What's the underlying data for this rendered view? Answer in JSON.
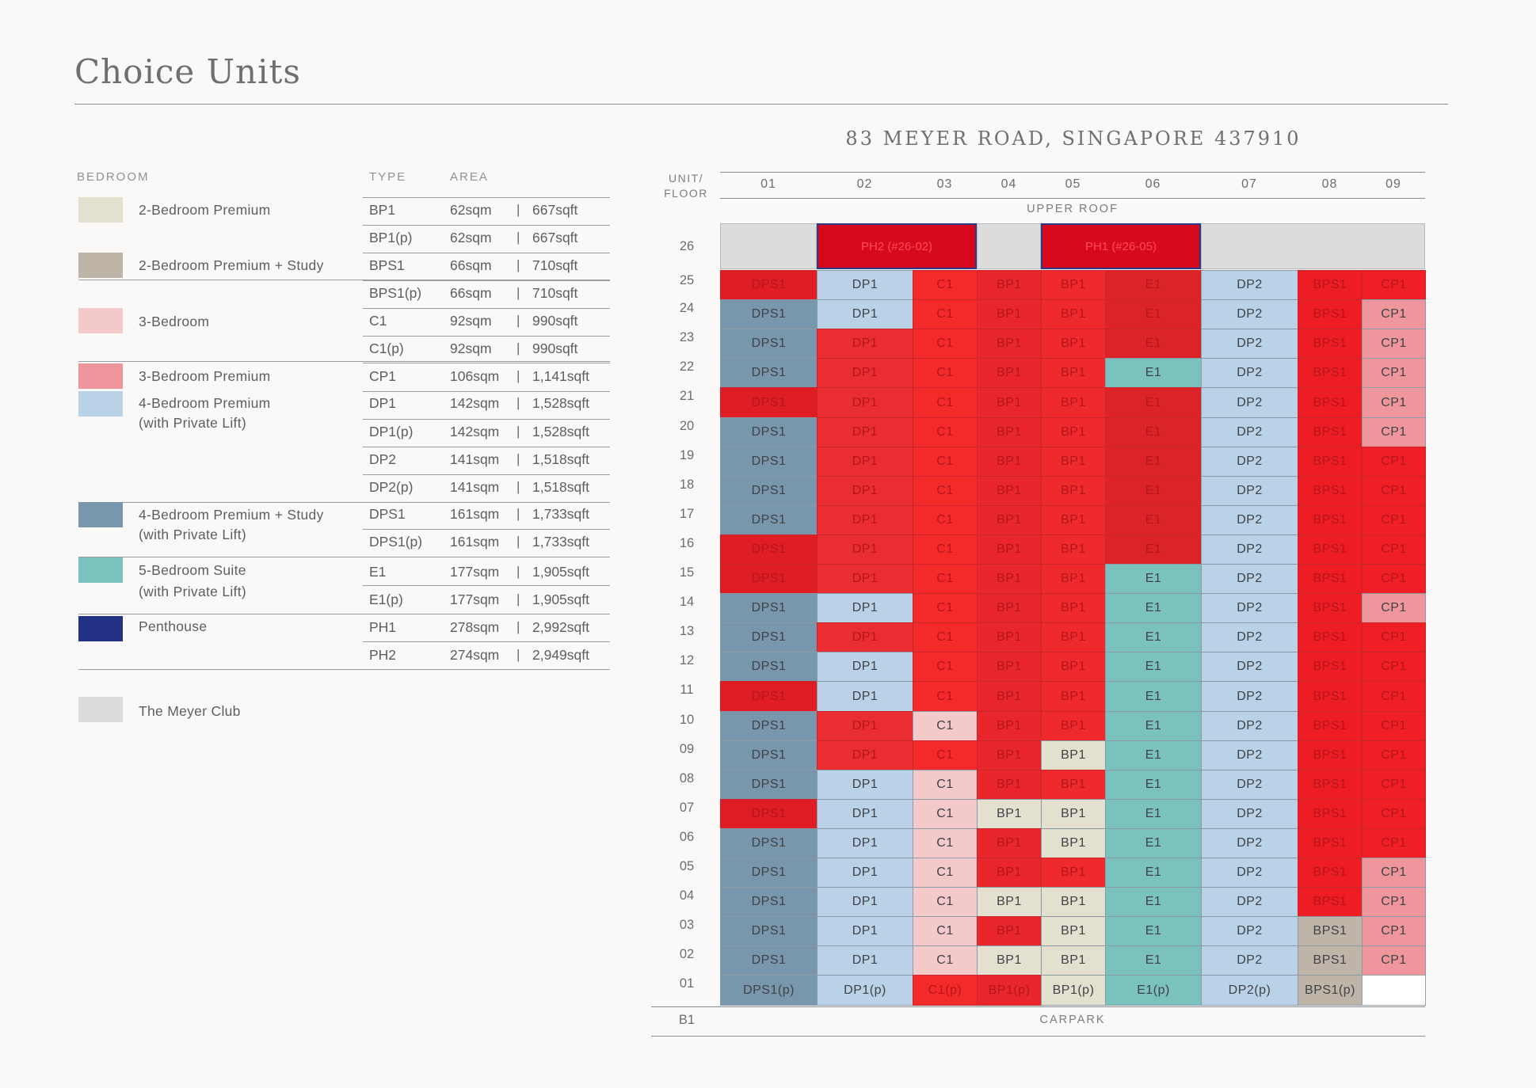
{
  "page": {
    "title": "Choice Units"
  },
  "legend": {
    "headers": {
      "bedroom": "BEDROOM",
      "type": "TYPE",
      "area": "AREA"
    },
    "groups": [
      {
        "name": "2-Bedroom Premium",
        "color": "#e4e0d0"
      },
      {
        "name": "2-Bedroom Premium + Study",
        "color": "#beb5a8"
      },
      {
        "name": "3-Bedroom",
        "color": "#f4c9ca"
      },
      {
        "name": "3-Bedroom Premium",
        "color": "#ef959c"
      },
      {
        "name": "4-Bedroom Premium",
        "name2": "(with Private Lift)",
        "color": "#b9d2e7"
      },
      {
        "name": "4-Bedroom Premium + Study",
        "name2": "(with Private Lift)",
        "color": "#7897ac"
      },
      {
        "name": "5-Bedroom Suite",
        "name2": "(with Private Lift)",
        "color": "#7bc2be"
      },
      {
        "name": "Penthouse",
        "color": "#233184"
      },
      {
        "name": "The Meyer Club",
        "color": "#dcdcdc"
      }
    ],
    "rows": [
      {
        "type": "BP1",
        "sqm": "62sqm",
        "sqft": "667sqft"
      },
      {
        "type": "BP1(p)",
        "sqm": "62sqm",
        "sqft": "667sqft"
      },
      {
        "type": "BPS1",
        "sqm": "66sqm",
        "sqft": "710sqft"
      },
      {
        "type": "BPS1(p)",
        "sqm": "66sqm",
        "sqft": "710sqft"
      },
      {
        "type": "C1",
        "sqm": "92sqm",
        "sqft": "990sqft"
      },
      {
        "type": "C1(p)",
        "sqm": "92sqm",
        "sqft": "990sqft"
      },
      {
        "type": "CP1",
        "sqm": "106sqm",
        "sqft": "1,141sqft"
      },
      {
        "type": "DP1",
        "sqm": "142sqm",
        "sqft": "1,528sqft"
      },
      {
        "type": "DP1(p)",
        "sqm": "142sqm",
        "sqft": "1,528sqft"
      },
      {
        "type": "DP2",
        "sqm": "141sqm",
        "sqft": "1,518sqft"
      },
      {
        "type": "DP2(p)",
        "sqm": "141sqm",
        "sqft": "1,518sqft"
      },
      {
        "type": "DPS1",
        "sqm": "161sqm",
        "sqft": "1,733sqft"
      },
      {
        "type": "DPS1(p)",
        "sqm": "161sqm",
        "sqft": "1,733sqft"
      },
      {
        "type": "E1",
        "sqm": "177sqm",
        "sqft": "1,905sqft"
      },
      {
        "type": "E1(p)",
        "sqm": "177sqm",
        "sqft": "1,905sqft"
      },
      {
        "type": "PH1",
        "sqm": "278sqm",
        "sqft": "2,992sqft"
      },
      {
        "type": "PH2",
        "sqm": "274sqm",
        "sqft": "2,949sqft"
      }
    ],
    "pipe": "|"
  },
  "building": {
    "title": "83 MEYER ROAD, SINGAPORE 437910",
    "unit_floor_1": "UNIT/",
    "unit_floor_2": "FLOOR",
    "upper_roof": "UPPER ROOF",
    "basement_floor": "B1",
    "basement_label": "CARPARK",
    "units": [
      "01",
      "02",
      "03",
      "04",
      "05",
      "06",
      "07",
      "08",
      "09"
    ],
    "type_colors": {
      "DPS1": "#7897ac",
      "DP1": "#b9d2e7",
      "C1": "#f4c9ca",
      "BP1": "#e4e0d0",
      "E1": "#7bc2be",
      "DP2": "#b9d2e7",
      "BPS1": "#beb5a8",
      "CP1": "#ef959c",
      "club": "#dcdcdc",
      "sold": "#e8262b"
    },
    "floor_26": {
      "floor": "26",
      "cells": [
        {
          "label": "",
          "club": true
        },
        {
          "label": "PH2 (#26-02)",
          "penthouse": true
        },
        {
          "label": "",
          "club": true
        },
        {
          "label": "PH1 (#26-05)",
          "penthouse": true
        },
        {
          "label": "",
          "club": true
        }
      ]
    },
    "floors": [
      {
        "floor": "25",
        "cells": [
          [
            "DPS1",
            1
          ],
          [
            "DP1",
            0
          ],
          [
            "C1",
            1
          ],
          [
            "BP1",
            1
          ],
          [
            "BP1",
            1
          ],
          [
            "E1",
            1
          ],
          [
            "DP2",
            0
          ],
          [
            "BPS1",
            1
          ],
          [
            "CP1",
            1
          ]
        ]
      },
      {
        "floor": "24",
        "cells": [
          [
            "DPS1",
            0
          ],
          [
            "DP1",
            0
          ],
          [
            "C1",
            1
          ],
          [
            "BP1",
            1
          ],
          [
            "BP1",
            1
          ],
          [
            "E1",
            1
          ],
          [
            "DP2",
            0
          ],
          [
            "BPS1",
            1
          ],
          [
            "CP1",
            0
          ]
        ]
      },
      {
        "floor": "23",
        "cells": [
          [
            "DPS1",
            0
          ],
          [
            "DP1",
            1
          ],
          [
            "C1",
            1
          ],
          [
            "BP1",
            1
          ],
          [
            "BP1",
            1
          ],
          [
            "E1",
            1
          ],
          [
            "DP2",
            0
          ],
          [
            "BPS1",
            1
          ],
          [
            "CP1",
            0
          ]
        ]
      },
      {
        "floor": "22",
        "cells": [
          [
            "DPS1",
            0
          ],
          [
            "DP1",
            1
          ],
          [
            "C1",
            1
          ],
          [
            "BP1",
            1
          ],
          [
            "BP1",
            1
          ],
          [
            "E1",
            0
          ],
          [
            "DP2",
            0
          ],
          [
            "BPS1",
            1
          ],
          [
            "CP1",
            0
          ]
        ]
      },
      {
        "floor": "21",
        "cells": [
          [
            "DPS1",
            1
          ],
          [
            "DP1",
            1
          ],
          [
            "C1",
            1
          ],
          [
            "BP1",
            1
          ],
          [
            "BP1",
            1
          ],
          [
            "E1",
            1
          ],
          [
            "DP2",
            0
          ],
          [
            "BPS1",
            1
          ],
          [
            "CP1",
            0
          ]
        ]
      },
      {
        "floor": "20",
        "cells": [
          [
            "DPS1",
            0
          ],
          [
            "DP1",
            1
          ],
          [
            "C1",
            1
          ],
          [
            "BP1",
            1
          ],
          [
            "BP1",
            1
          ],
          [
            "E1",
            1
          ],
          [
            "DP2",
            0
          ],
          [
            "BPS1",
            1
          ],
          [
            "CP1",
            0
          ]
        ]
      },
      {
        "floor": "19",
        "cells": [
          [
            "DPS1",
            0
          ],
          [
            "DP1",
            1
          ],
          [
            "C1",
            1
          ],
          [
            "BP1",
            1
          ],
          [
            "BP1",
            1
          ],
          [
            "E1",
            1
          ],
          [
            "DP2",
            0
          ],
          [
            "BPS1",
            1
          ],
          [
            "CP1",
            1
          ]
        ]
      },
      {
        "floor": "18",
        "cells": [
          [
            "DPS1",
            0
          ],
          [
            "DP1",
            1
          ],
          [
            "C1",
            1
          ],
          [
            "BP1",
            1
          ],
          [
            "BP1",
            1
          ],
          [
            "E1",
            1
          ],
          [
            "DP2",
            0
          ],
          [
            "BPS1",
            1
          ],
          [
            "CP1",
            1
          ]
        ]
      },
      {
        "floor": "17",
        "cells": [
          [
            "DPS1",
            0
          ],
          [
            "DP1",
            1
          ],
          [
            "C1",
            1
          ],
          [
            "BP1",
            1
          ],
          [
            "BP1",
            1
          ],
          [
            "E1",
            1
          ],
          [
            "DP2",
            0
          ],
          [
            "BPS1",
            1
          ],
          [
            "CP1",
            1
          ]
        ]
      },
      {
        "floor": "16",
        "cells": [
          [
            "DPS1",
            1
          ],
          [
            "DP1",
            1
          ],
          [
            "C1",
            1
          ],
          [
            "BP1",
            1
          ],
          [
            "BP1",
            1
          ],
          [
            "E1",
            1
          ],
          [
            "DP2",
            0
          ],
          [
            "BPS1",
            1
          ],
          [
            "CP1",
            1
          ]
        ]
      },
      {
        "floor": "15",
        "cells": [
          [
            "DPS1",
            1
          ],
          [
            "DP1",
            1
          ],
          [
            "C1",
            1
          ],
          [
            "BP1",
            1
          ],
          [
            "BP1",
            1
          ],
          [
            "E1",
            0
          ],
          [
            "DP2",
            0
          ],
          [
            "BPS1",
            1
          ],
          [
            "CP1",
            1
          ]
        ]
      },
      {
        "floor": "14",
        "cells": [
          [
            "DPS1",
            0
          ],
          [
            "DP1",
            0
          ],
          [
            "C1",
            1
          ],
          [
            "BP1",
            1
          ],
          [
            "BP1",
            1
          ],
          [
            "E1",
            0
          ],
          [
            "DP2",
            0
          ],
          [
            "BPS1",
            1
          ],
          [
            "CP1",
            0
          ]
        ]
      },
      {
        "floor": "13",
        "cells": [
          [
            "DPS1",
            0
          ],
          [
            "DP1",
            1
          ],
          [
            "C1",
            1
          ],
          [
            "BP1",
            1
          ],
          [
            "BP1",
            1
          ],
          [
            "E1",
            0
          ],
          [
            "DP2",
            0
          ],
          [
            "BPS1",
            1
          ],
          [
            "CP1",
            1
          ]
        ]
      },
      {
        "floor": "12",
        "cells": [
          [
            "DPS1",
            0
          ],
          [
            "DP1",
            0
          ],
          [
            "C1",
            1
          ],
          [
            "BP1",
            1
          ],
          [
            "BP1",
            1
          ],
          [
            "E1",
            0
          ],
          [
            "DP2",
            0
          ],
          [
            "BPS1",
            1
          ],
          [
            "CP1",
            1
          ]
        ]
      },
      {
        "floor": "11",
        "cells": [
          [
            "DPS1",
            1
          ],
          [
            "DP1",
            0
          ],
          [
            "C1",
            1
          ],
          [
            "BP1",
            1
          ],
          [
            "BP1",
            1
          ],
          [
            "E1",
            0
          ],
          [
            "DP2",
            0
          ],
          [
            "BPS1",
            1
          ],
          [
            "CP1",
            1
          ]
        ]
      },
      {
        "floor": "10",
        "cells": [
          [
            "DPS1",
            0
          ],
          [
            "DP1",
            1
          ],
          [
            "C1",
            0
          ],
          [
            "BP1",
            1
          ],
          [
            "BP1",
            1
          ],
          [
            "E1",
            0
          ],
          [
            "DP2",
            0
          ],
          [
            "BPS1",
            1
          ],
          [
            "CP1",
            1
          ]
        ]
      },
      {
        "floor": "09",
        "cells": [
          [
            "DPS1",
            0
          ],
          [
            "DP1",
            1
          ],
          [
            "C1",
            1
          ],
          [
            "BP1",
            1
          ],
          [
            "BP1",
            0
          ],
          [
            "E1",
            0
          ],
          [
            "DP2",
            0
          ],
          [
            "BPS1",
            1
          ],
          [
            "CP1",
            1
          ]
        ]
      },
      {
        "floor": "08",
        "cells": [
          [
            "DPS1",
            0
          ],
          [
            "DP1",
            0
          ],
          [
            "C1",
            0
          ],
          [
            "BP1",
            1
          ],
          [
            "BP1",
            1
          ],
          [
            "E1",
            0
          ],
          [
            "DP2",
            0
          ],
          [
            "BPS1",
            1
          ],
          [
            "CP1",
            1
          ]
        ]
      },
      {
        "floor": "07",
        "cells": [
          [
            "DPS1",
            1
          ],
          [
            "DP1",
            0
          ],
          [
            "C1",
            0
          ],
          [
            "BP1",
            0
          ],
          [
            "BP1",
            0
          ],
          [
            "E1",
            0
          ],
          [
            "DP2",
            0
          ],
          [
            "BPS1",
            1
          ],
          [
            "CP1",
            1
          ]
        ]
      },
      {
        "floor": "06",
        "cells": [
          [
            "DPS1",
            0
          ],
          [
            "DP1",
            0
          ],
          [
            "C1",
            0
          ],
          [
            "BP1",
            1
          ],
          [
            "BP1",
            0
          ],
          [
            "E1",
            0
          ],
          [
            "DP2",
            0
          ],
          [
            "BPS1",
            1
          ],
          [
            "CP1",
            1
          ]
        ]
      },
      {
        "floor": "05",
        "cells": [
          [
            "DPS1",
            0
          ],
          [
            "DP1",
            0
          ],
          [
            "C1",
            0
          ],
          [
            "BP1",
            1
          ],
          [
            "BP1",
            1
          ],
          [
            "E1",
            0
          ],
          [
            "DP2",
            0
          ],
          [
            "BPS1",
            1
          ],
          [
            "CP1",
            0
          ]
        ]
      },
      {
        "floor": "04",
        "cells": [
          [
            "DPS1",
            0
          ],
          [
            "DP1",
            0
          ],
          [
            "C1",
            0
          ],
          [
            "BP1",
            0
          ],
          [
            "BP1",
            0
          ],
          [
            "E1",
            0
          ],
          [
            "DP2",
            0
          ],
          [
            "BPS1",
            1
          ],
          [
            "CP1",
            0
          ]
        ]
      },
      {
        "floor": "03",
        "cells": [
          [
            "DPS1",
            0
          ],
          [
            "DP1",
            0
          ],
          [
            "C1",
            0
          ],
          [
            "BP1",
            1
          ],
          [
            "BP1",
            0
          ],
          [
            "E1",
            0
          ],
          [
            "DP2",
            0
          ],
          [
            "BPS1",
            0
          ],
          [
            "CP1",
            0
          ]
        ]
      },
      {
        "floor": "02",
        "cells": [
          [
            "DPS1",
            0
          ],
          [
            "DP1",
            0
          ],
          [
            "C1",
            0
          ],
          [
            "BP1",
            0
          ],
          [
            "BP1",
            0
          ],
          [
            "E1",
            0
          ],
          [
            "DP2",
            0
          ],
          [
            "BPS1",
            0
          ],
          [
            "CP1",
            0
          ]
        ]
      },
      {
        "floor": "01",
        "cells": [
          [
            "DPS1(p)",
            0
          ],
          [
            "DP1(p)",
            0
          ],
          [
            "C1(p)",
            1
          ],
          [
            "BP1(p)",
            1
          ],
          [
            "BP1(p)",
            0
          ],
          [
            "E1(p)",
            0
          ],
          [
            "DP2(p)",
            0
          ],
          [
            "BPS1(p)",
            0
          ],
          [
            "",
            0
          ]
        ]
      }
    ]
  }
}
